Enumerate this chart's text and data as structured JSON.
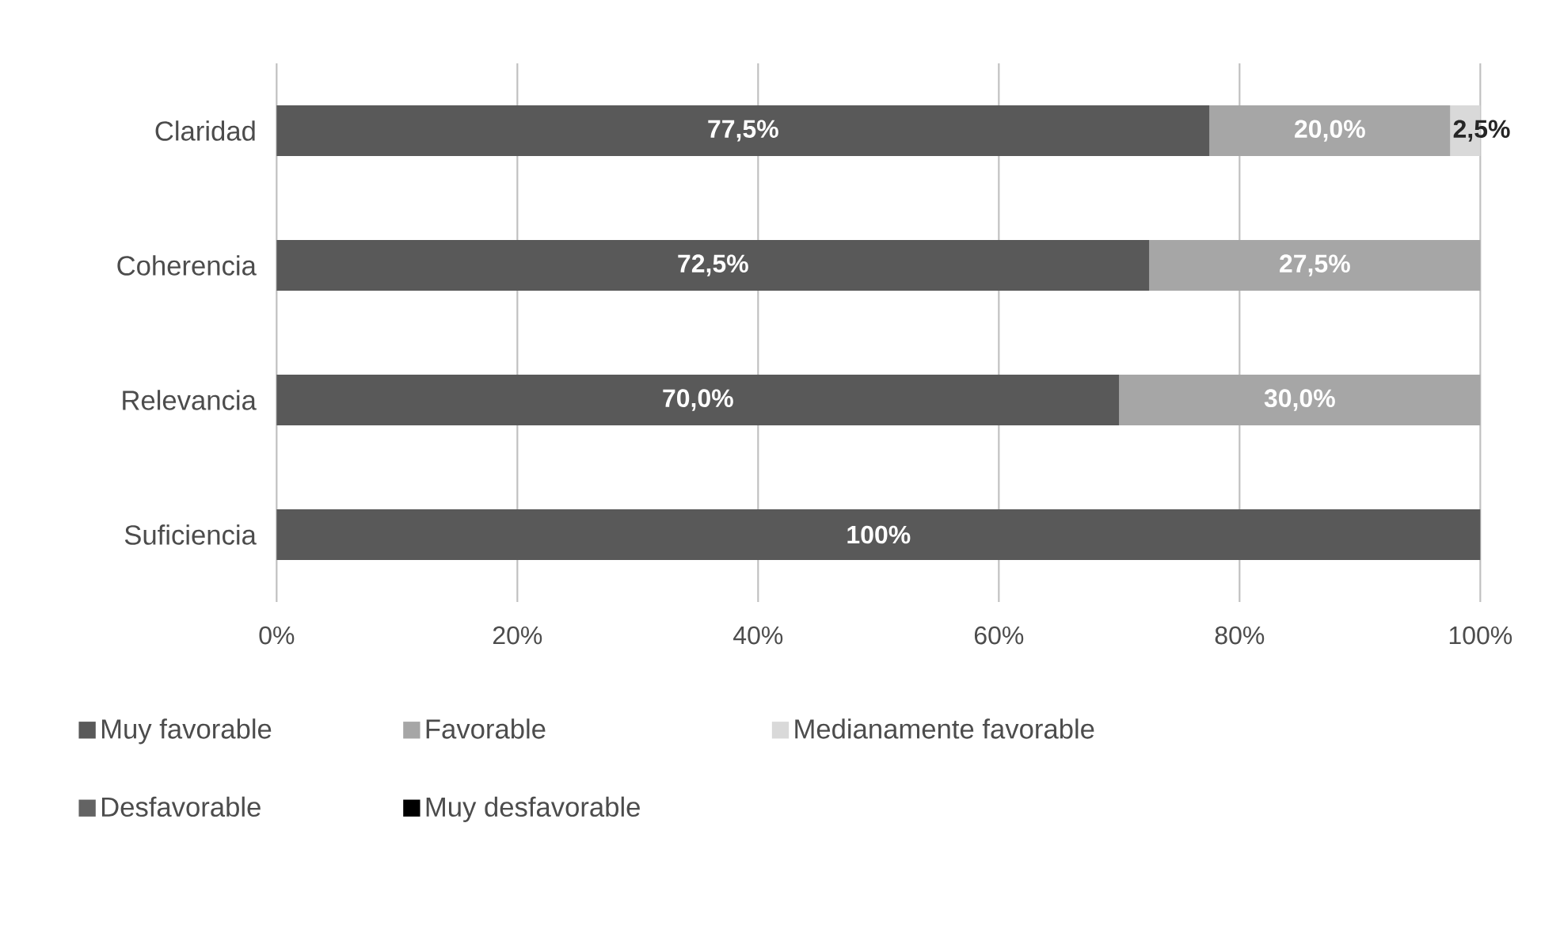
{
  "chart_data": {
    "type": "bar",
    "orientation": "horizontal",
    "stacked": true,
    "categories": [
      "Claridad",
      "Coherencia",
      "Relevancia",
      "Suficiencia"
    ],
    "series": [
      {
        "name": "Muy favorable",
        "color": "#595959",
        "values": [
          77.5,
          72.5,
          70.0,
          100
        ],
        "value_labels": [
          "77,5%",
          "72,5%",
          "70,0%",
          "100%"
        ]
      },
      {
        "name": "Favorable",
        "color": "#a6a6a6",
        "values": [
          20.0,
          27.5,
          30.0,
          0
        ],
        "value_labels": [
          "20,0%",
          "27,5%",
          "30,0%",
          null
        ]
      },
      {
        "name": "Medianamente favorable",
        "color": "#d9d9d9",
        "values": [
          2.5,
          0,
          0,
          0
        ],
        "value_labels": [
          "2,5%",
          null,
          null,
          null
        ]
      },
      {
        "name": "Desfavorable",
        "color": "#636363",
        "values": [
          0,
          0,
          0,
          0
        ]
      },
      {
        "name": "Muy desfavorable",
        "color": "#000000",
        "values": [
          0,
          0,
          0,
          0
        ]
      }
    ],
    "xlim": [
      0,
      100
    ],
    "xticks": [
      {
        "value": 0,
        "label": "0%"
      },
      {
        "value": 20,
        "label": "20%"
      },
      {
        "value": 40,
        "label": "40%"
      },
      {
        "value": 60,
        "label": "60%"
      },
      {
        "value": 80,
        "label": "80%"
      },
      {
        "value": 100,
        "label": "100%"
      }
    ],
    "grid": "x",
    "legend": "bottom"
  }
}
